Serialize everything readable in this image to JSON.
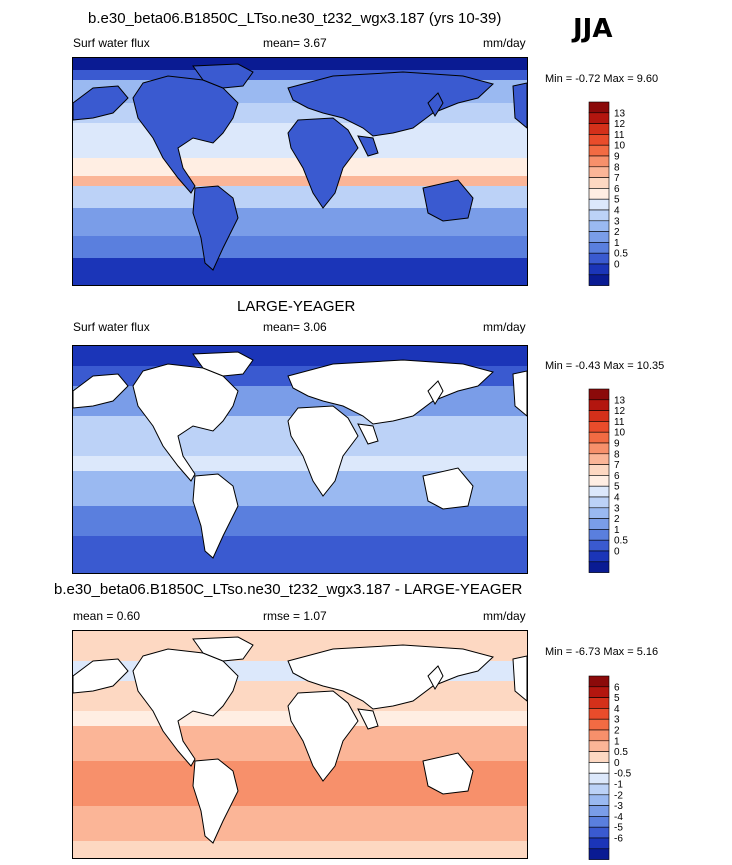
{
  "season": "JJA",
  "panels": [
    {
      "title": "b.e30_beta06.B1850C_LTso.ne30_t232_wgx3.187 (yrs 10-39)",
      "variable": "Surf water flux",
      "stat1": "mean=  3.67",
      "stat2": "",
      "units": "mm/day",
      "min_label": "Min = ",
      "min": "-0.72",
      "max_label": "Max = ",
      "max": "9.60",
      "colorbar_labels": [
        "13",
        "12",
        "11",
        "10",
        "9",
        "8",
        "7",
        "6",
        "5",
        "4",
        "3",
        "2",
        "1",
        "0.5",
        "0"
      ],
      "colorbar_colors": [
        "#8b0a0a",
        "#b3160f",
        "#d4301a",
        "#e94c2b",
        "#f26b43",
        "#f7906b",
        "#fbb597",
        "#fdd8c2",
        "#ffeee3",
        "#dce8fb",
        "#bcd2f7",
        "#9ab9f1",
        "#7a9de8",
        "#5a7fde",
        "#3a5ad0",
        "#1b35b8",
        "#0a1b93"
      ],
      "map_type": "full"
    },
    {
      "title": "LARGE-YEAGER",
      "variable": "Surf water flux",
      "stat1": "mean=  3.06",
      "stat2": "",
      "units": "mm/day",
      "min_label": "Min = ",
      "min": "-0.43",
      "max_label": "Max = ",
      "max": "10.35",
      "colorbar_labels": [
        "13",
        "12",
        "11",
        "10",
        "9",
        "8",
        "7",
        "6",
        "5",
        "4",
        "3",
        "2",
        "1",
        "0.5",
        "0"
      ],
      "colorbar_colors": [
        "#8b0a0a",
        "#b3160f",
        "#d4301a",
        "#e94c2b",
        "#f26b43",
        "#f7906b",
        "#fbb597",
        "#fdd8c2",
        "#ffeee3",
        "#dce8fb",
        "#bcd2f7",
        "#9ab9f1",
        "#7a9de8",
        "#5a7fde",
        "#3a5ad0",
        "#1b35b8",
        "#0a1b93"
      ],
      "map_type": "ocean"
    },
    {
      "title": "b.e30_beta06.B1850C_LTso.ne30_t232_wgx3.187 - LARGE-YEAGER",
      "variable": "mean =   0.60",
      "stat1": "rmse =   1.07",
      "stat2": "",
      "units": "mm/day",
      "min_label": "Min = ",
      "min": "-6.73",
      "max_label": "Max = ",
      "max": "5.16",
      "colorbar_labels": [
        "6",
        "5",
        "4",
        "3",
        "2",
        "1",
        "0.5",
        "0",
        "-0.5",
        "-1",
        "-2",
        "-3",
        "-4",
        "-5",
        "-6"
      ],
      "colorbar_colors": [
        "#8b0a0a",
        "#b3160f",
        "#d4301a",
        "#e94c2b",
        "#f26b43",
        "#f7906b",
        "#fbb597",
        "#fdd8c2",
        "#ffffff",
        "#dce8fb",
        "#bcd2f7",
        "#9ab9f1",
        "#7a9de8",
        "#5a7fde",
        "#3a5ad0",
        "#1b35b8",
        "#0a1b93"
      ],
      "map_type": "diff"
    }
  ]
}
